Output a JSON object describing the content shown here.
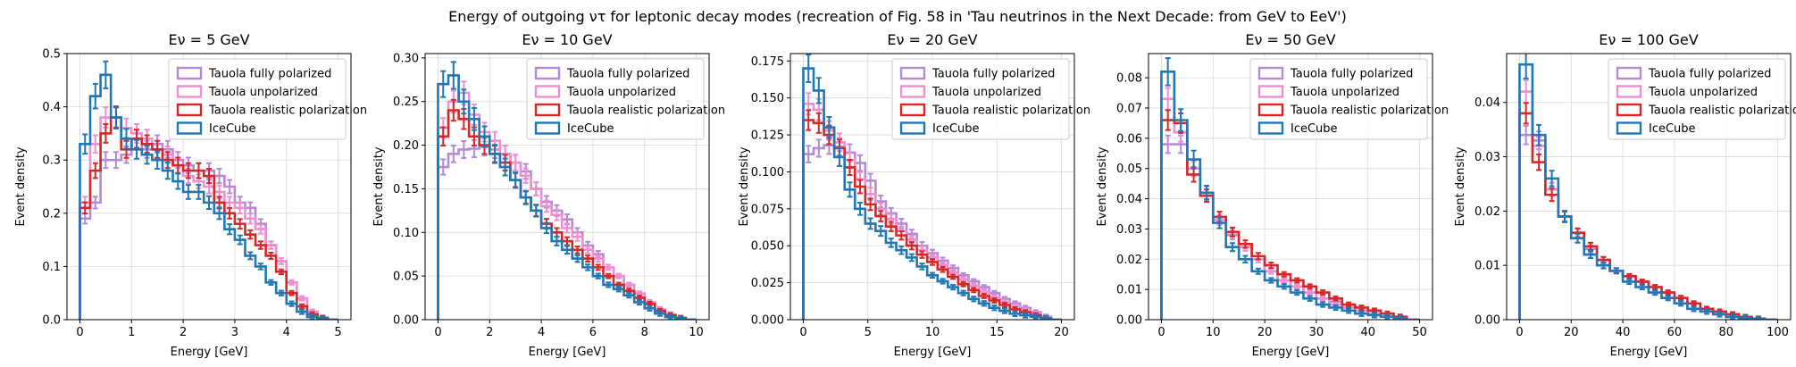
{
  "figure": {
    "suptitle": "Energy of outgoing ντ for leptonic decay modes (recreation of Fig. 58 in 'Tau neutrinos in the Next Decade: from GeV to EeV')"
  },
  "legend_labels": [
    "Tauola fully polarized",
    "Tauola unpolarized",
    "Tauola realistic polarization",
    "IceCube"
  ],
  "series_colors": [
    "#b48ad6",
    "#ee8fd1",
    "#d62728",
    "#1f77b4"
  ],
  "chart_data": [
    {
      "type": "histogram-step",
      "title": "Eν = 5 GeV",
      "xlabel": "Energy [GeV]",
      "ylabel": "Event density",
      "xlim": [
        -0.25,
        5.25
      ],
      "ylim": [
        0,
        0.5
      ],
      "xticks": [
        0,
        1,
        2,
        3,
        4,
        5
      ],
      "yticks": [
        0,
        0.1,
        0.2,
        0.3,
        0.4,
        0.5
      ],
      "xtick_labels": [
        "0",
        "1",
        "2",
        "3",
        "4",
        "5"
      ],
      "ytick_labels": [
        "0.0",
        "0.1",
        "0.2",
        "0.3",
        "0.4",
        "0.5"
      ],
      "bin_width": 0.2,
      "n_bins": 25,
      "grid": true,
      "legend": "upper right",
      "series": [
        {
          "name": "Tauola fully polarized",
          "values": [
            0.19,
            0.22,
            0.3,
            0.3,
            0.31,
            0.34,
            0.32,
            0.33,
            0.32,
            0.3,
            0.29,
            0.28,
            0.28,
            0.27,
            0.25,
            0.22,
            0.21,
            0.18,
            0.14,
            0.11,
            0.07,
            0.04,
            0.015,
            0.004,
            0.0
          ]
        },
        {
          "name": "Tauola unpolarized",
          "values": [
            0.22,
            0.33,
            0.38,
            0.38,
            0.36,
            0.35,
            0.34,
            0.32,
            0.31,
            0.29,
            0.27,
            0.26,
            0.25,
            0.24,
            0.22,
            0.21,
            0.19,
            0.17,
            0.14,
            0.11,
            0.07,
            0.04,
            0.015,
            0.004,
            0.0
          ]
        },
        {
          "name": "Tauola realistic polarization",
          "values": [
            0.21,
            0.28,
            0.35,
            0.38,
            0.32,
            0.34,
            0.33,
            0.32,
            0.3,
            0.29,
            0.28,
            0.28,
            0.27,
            0.22,
            0.2,
            0.18,
            0.16,
            0.14,
            0.12,
            0.09,
            0.05,
            0.025,
            0.01,
            0.003,
            0.0
          ]
        },
        {
          "name": "IceCube",
          "values": [
            0.33,
            0.42,
            0.46,
            0.38,
            0.34,
            0.32,
            0.31,
            0.3,
            0.28,
            0.26,
            0.24,
            0.24,
            0.22,
            0.2,
            0.17,
            0.15,
            0.12,
            0.1,
            0.07,
            0.05,
            0.03,
            0.015,
            0.005,
            0.001,
            0.0
          ]
        }
      ]
    },
    {
      "type": "histogram-step",
      "title": "Eν = 10 GeV",
      "xlabel": "Energy [GeV]",
      "ylabel": "Event density",
      "xlim": [
        -0.5,
        10.5
      ],
      "ylim": [
        0,
        0.305
      ],
      "xticks": [
        0,
        2,
        4,
        6,
        8,
        10
      ],
      "yticks": [
        0,
        0.05,
        0.1,
        0.15,
        0.2,
        0.25,
        0.3
      ],
      "xtick_labels": [
        "0",
        "2",
        "4",
        "6",
        "8",
        "10"
      ],
      "ytick_labels": [
        "0.00",
        "0.05",
        "0.10",
        "0.15",
        "0.20",
        "0.25",
        "0.30"
      ],
      "bin_width": 0.4,
      "n_bins": 25,
      "grid": true,
      "legend": "upper right",
      "series": [
        {
          "name": "Tauola fully polarized",
          "values": [
            0.175,
            0.19,
            0.195,
            0.196,
            0.198,
            0.195,
            0.19,
            0.18,
            0.17,
            0.15,
            0.135,
            0.125,
            0.115,
            0.1,
            0.085,
            0.075,
            0.06,
            0.05,
            0.04,
            0.03,
            0.02,
            0.012,
            0.006,
            0.002,
            0.0
          ]
        },
        {
          "name": "Tauola unpolarized",
          "values": [
            0.22,
            0.25,
            0.26,
            0.235,
            0.215,
            0.205,
            0.19,
            0.18,
            0.165,
            0.15,
            0.13,
            0.12,
            0.105,
            0.095,
            0.08,
            0.07,
            0.06,
            0.05,
            0.04,
            0.03,
            0.02,
            0.012,
            0.006,
            0.002,
            0.0
          ]
        },
        {
          "name": "Tauola realistic polarization",
          "values": [
            0.21,
            0.24,
            0.23,
            0.21,
            0.2,
            0.19,
            0.18,
            0.16,
            0.14,
            0.125,
            0.11,
            0.1,
            0.09,
            0.08,
            0.07,
            0.06,
            0.05,
            0.04,
            0.033,
            0.025,
            0.018,
            0.01,
            0.005,
            0.002,
            0.0
          ]
        },
        {
          "name": "IceCube",
          "values": [
            0.27,
            0.28,
            0.25,
            0.23,
            0.21,
            0.19,
            0.175,
            0.16,
            0.14,
            0.125,
            0.105,
            0.09,
            0.08,
            0.07,
            0.06,
            0.05,
            0.04,
            0.035,
            0.028,
            0.02,
            0.013,
            0.007,
            0.003,
            0.001,
            0.0
          ]
        }
      ]
    },
    {
      "type": "histogram-step",
      "title": "Eν = 20 GeV",
      "xlabel": "Energy [GeV]",
      "ylabel": "Event density",
      "xlim": [
        -1,
        21
      ],
      "ylim": [
        0,
        0.18
      ],
      "xticks": [
        0,
        5,
        10,
        15,
        20
      ],
      "yticks": [
        0,
        0.025,
        0.05,
        0.075,
        0.1,
        0.125,
        0.15,
        0.175
      ],
      "xtick_labels": [
        "0",
        "5",
        "10",
        "15",
        "20"
      ],
      "ytick_labels": [
        "0.000",
        "0.025",
        "0.050",
        "0.075",
        "0.100",
        "0.125",
        "0.150",
        "0.175"
      ],
      "bin_width": 0.8,
      "n_bins": 25,
      "grid": true,
      "legend": "upper right",
      "series": [
        {
          "name": "Tauola fully polarized",
          "values": [
            0.112,
            0.116,
            0.118,
            0.117,
            0.113,
            0.106,
            0.094,
            0.08,
            0.072,
            0.065,
            0.058,
            0.05,
            0.045,
            0.04,
            0.035,
            0.03,
            0.026,
            0.022,
            0.018,
            0.014,
            0.011,
            0.008,
            0.005,
            0.002,
            0.0
          ]
        },
        {
          "name": "Tauola unpolarized",
          "values": [
            0.146,
            0.142,
            0.128,
            0.12,
            0.108,
            0.095,
            0.085,
            0.075,
            0.068,
            0.06,
            0.054,
            0.047,
            0.042,
            0.037,
            0.032,
            0.027,
            0.023,
            0.019,
            0.015,
            0.012,
            0.009,
            0.006,
            0.004,
            0.002,
            0.0
          ]
        },
        {
          "name": "Tauola realistic polarization",
          "values": [
            0.135,
            0.133,
            0.125,
            0.116,
            0.103,
            0.09,
            0.078,
            0.07,
            0.063,
            0.057,
            0.05,
            0.044,
            0.039,
            0.034,
            0.029,
            0.024,
            0.02,
            0.016,
            0.013,
            0.01,
            0.007,
            0.005,
            0.003,
            0.001,
            0.0
          ]
        },
        {
          "name": "IceCube",
          "values": [
            0.17,
            0.155,
            0.13,
            0.11,
            0.088,
            0.075,
            0.065,
            0.06,
            0.052,
            0.047,
            0.042,
            0.036,
            0.03,
            0.026,
            0.022,
            0.018,
            0.014,
            0.011,
            0.008,
            0.006,
            0.004,
            0.003,
            0.002,
            0.001,
            0.0
          ]
        }
      ]
    },
    {
      "type": "histogram-step",
      "title": "Eν = 50 GeV",
      "xlabel": "Energy [GeV]",
      "ylabel": "Event density",
      "xlim": [
        -2.5,
        52.5
      ],
      "ylim": [
        0,
        0.088
      ],
      "xticks": [
        0,
        10,
        20,
        30,
        40,
        50
      ],
      "yticks": [
        0,
        0.01,
        0.02,
        0.03,
        0.04,
        0.05,
        0.06,
        0.07,
        0.08
      ],
      "xtick_labels": [
        "0",
        "10",
        "20",
        "30",
        "40",
        "50"
      ],
      "ytick_labels": [
        "0.00",
        "0.01",
        "0.02",
        "0.03",
        "0.04",
        "0.05",
        "0.06",
        "0.07",
        "0.08"
      ],
      "bin_width": 2.5,
      "n_bins": 20,
      "grid": true,
      "legend": "upper right",
      "series": [
        {
          "name": "Tauola fully polarized",
          "values": [
            0.058,
            0.058,
            0.05,
            0.042,
            0.034,
            0.028,
            0.024,
            0.02,
            0.016,
            0.013,
            0.011,
            0.009,
            0.007,
            0.006,
            0.004,
            0.003,
            0.002,
            0.001,
            0.0005,
            0.0
          ]
        },
        {
          "name": "Tauola unpolarized",
          "values": [
            0.073,
            0.062,
            0.05,
            0.041,
            0.033,
            0.029,
            0.024,
            0.02,
            0.016,
            0.013,
            0.011,
            0.009,
            0.007,
            0.005,
            0.004,
            0.003,
            0.002,
            0.001,
            0.0005,
            0.0
          ]
        },
        {
          "name": "Tauola realistic polarization",
          "values": [
            0.066,
            0.065,
            0.048,
            0.041,
            0.034,
            0.029,
            0.025,
            0.021,
            0.018,
            0.015,
            0.013,
            0.011,
            0.009,
            0.007,
            0.005,
            0.004,
            0.003,
            0.002,
            0.001,
            0.0
          ]
        },
        {
          "name": "IceCube",
          "values": [
            0.082,
            0.066,
            0.053,
            0.042,
            0.032,
            0.024,
            0.02,
            0.016,
            0.013,
            0.011,
            0.009,
            0.007,
            0.005,
            0.004,
            0.003,
            0.002,
            0.0015,
            0.001,
            0.0005,
            0.0
          ]
        }
      ]
    },
    {
      "type": "histogram-step",
      "title": "Eν = 100 GeV",
      "xlabel": "Energy [GeV]",
      "ylabel": "Event density",
      "xlim": [
        -5,
        105
      ],
      "ylim": [
        0,
        0.049
      ],
      "xticks": [
        0,
        20,
        40,
        60,
        80,
        100
      ],
      "yticks": [
        0,
        0.01,
        0.02,
        0.03,
        0.04
      ],
      "xtick_labels": [
        "0",
        "20",
        "40",
        "60",
        "80",
        "100"
      ],
      "ytick_labels": [
        "0.00",
        "0.01",
        "0.02",
        "0.03",
        "0.04"
      ],
      "bin_width": 5,
      "n_bins": 20,
      "grid": true,
      "legend": "upper right",
      "series": [
        {
          "name": "Tauola fully polarized",
          "values": [
            0.034,
            0.033,
            0.024,
            0.019,
            0.016,
            0.013,
            0.011,
            0.009,
            0.008,
            0.007,
            0.006,
            0.005,
            0.004,
            0.003,
            0.002,
            0.0015,
            0.001,
            0.0005,
            0.0002,
            0.0
          ]
        },
        {
          "name": "Tauola unpolarized",
          "values": [
            0.042,
            0.032,
            0.024,
            0.019,
            0.015,
            0.012,
            0.01,
            0.009,
            0.008,
            0.006,
            0.005,
            0.004,
            0.003,
            0.002,
            0.0015,
            0.001,
            0.0005,
            0.0003,
            0.0001,
            0.0
          ]
        },
        {
          "name": "Tauola realistic polarization",
          "values": [
            0.038,
            0.029,
            0.023,
            0.019,
            0.016,
            0.0135,
            0.011,
            0.009,
            0.008,
            0.007,
            0.006,
            0.005,
            0.004,
            0.003,
            0.002,
            0.0015,
            0.001,
            0.0005,
            0.0002,
            0.0
          ]
        },
        {
          "name": "IceCube",
          "values": [
            0.047,
            0.034,
            0.026,
            0.019,
            0.015,
            0.012,
            0.01,
            0.009,
            0.007,
            0.006,
            0.005,
            0.004,
            0.003,
            0.002,
            0.0015,
            0.001,
            0.0005,
            0.0003,
            0.0001,
            0.0
          ]
        }
      ]
    }
  ]
}
